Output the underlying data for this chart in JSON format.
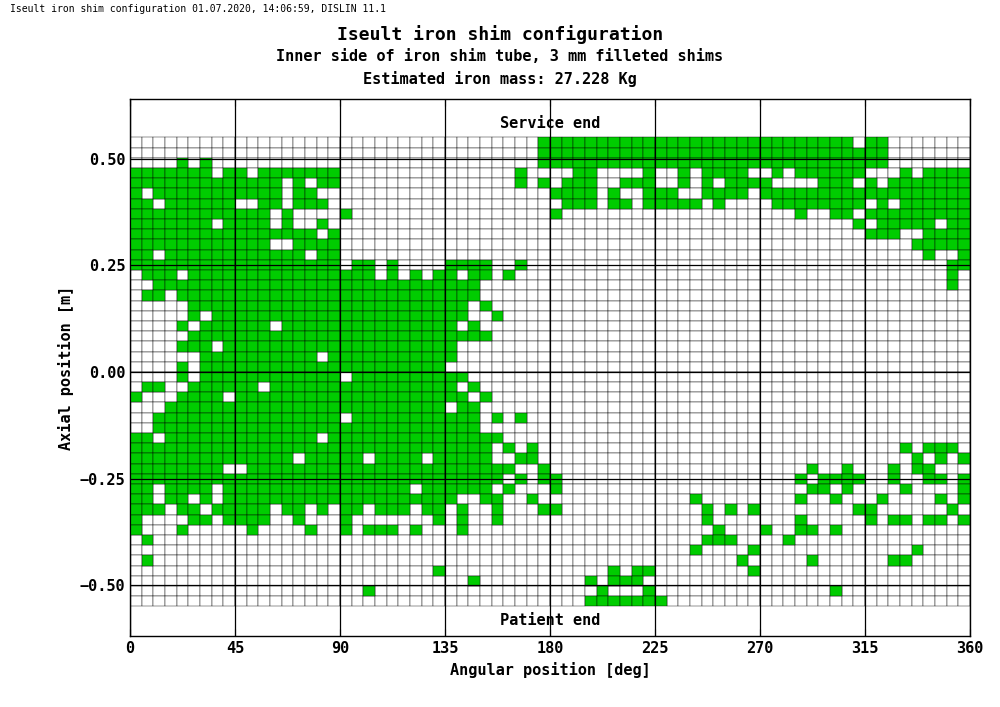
{
  "title_line1": "Iseult iron shim configuration",
  "title_line2": "Inner side of iron shim tube, 3 mm filleted shims",
  "title_line3": "Estimated iron mass: 27.228 Kg",
  "header_text": "Iseult iron shim configuration 01.07.2020, 14:06:59, DISLIN 11.1",
  "xlabel": "Angular position [deg]",
  "ylabel": "Axial position [m]",
  "service_end_label": "Service end",
  "patient_end_label": "Patient end",
  "xlim": [
    0,
    360
  ],
  "ylim": [
    -0.62,
    0.64
  ],
  "xticks": [
    0,
    45,
    90,
    135,
    180,
    225,
    270,
    315,
    360
  ],
  "yticks": [
    -0.5,
    -0.25,
    0.0,
    0.25,
    0.5
  ],
  "n_angular": 72,
  "n_axial": 46,
  "shim_color": "#00CC00",
  "bg_color": "#ffffff",
  "cell_border_color": "#000000"
}
